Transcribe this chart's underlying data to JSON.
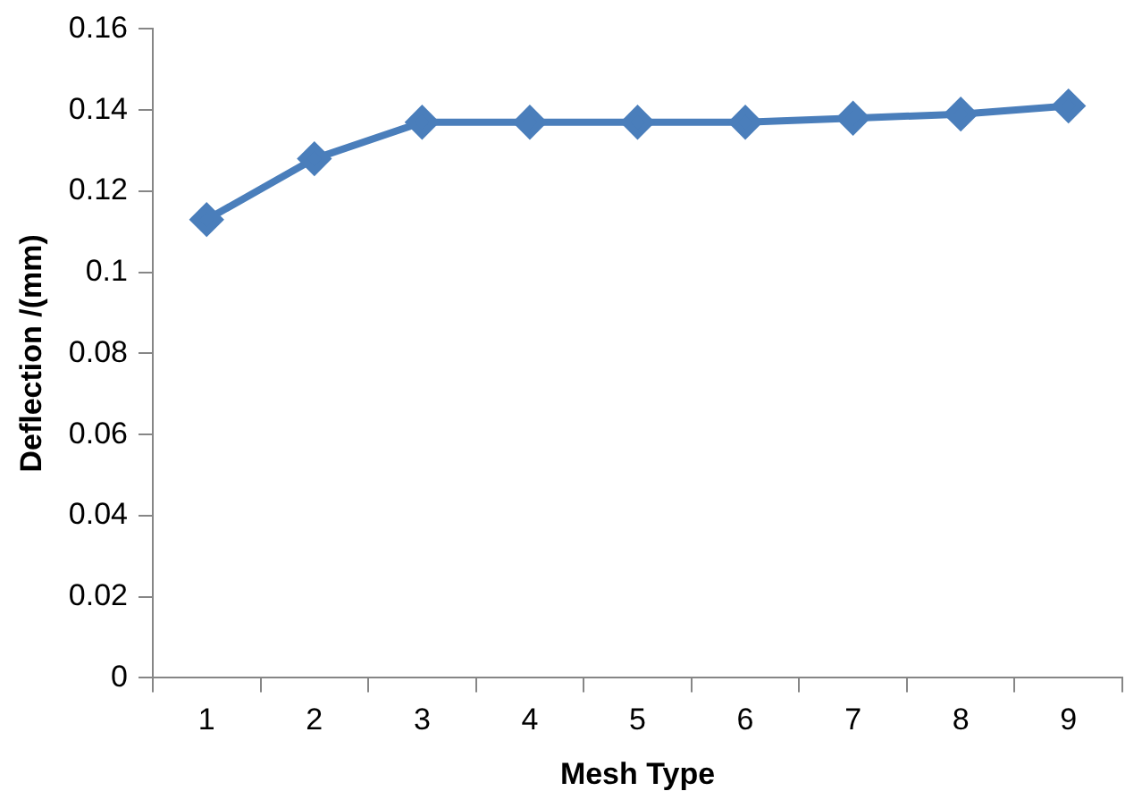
{
  "chart_data": {
    "type": "line",
    "xlabel": "Mesh Type",
    "ylabel": "Deflection /(mm)",
    "categories": [
      "1",
      "2",
      "3",
      "4",
      "5",
      "6",
      "7",
      "8",
      "9"
    ],
    "series": [
      {
        "color": "#4a7ebb",
        "values": [
          0.113,
          0.128,
          0.137,
          0.137,
          0.137,
          0.137,
          0.138,
          0.139,
          0.141
        ]
      }
    ],
    "ylim": [
      0,
      0.16
    ],
    "yticks": [
      0,
      0.02,
      0.04,
      0.06,
      0.08,
      0.1,
      0.12,
      0.14,
      0.16
    ],
    "grid": false,
    "legend": false,
    "marker": "diamond",
    "line_style": "solid"
  }
}
